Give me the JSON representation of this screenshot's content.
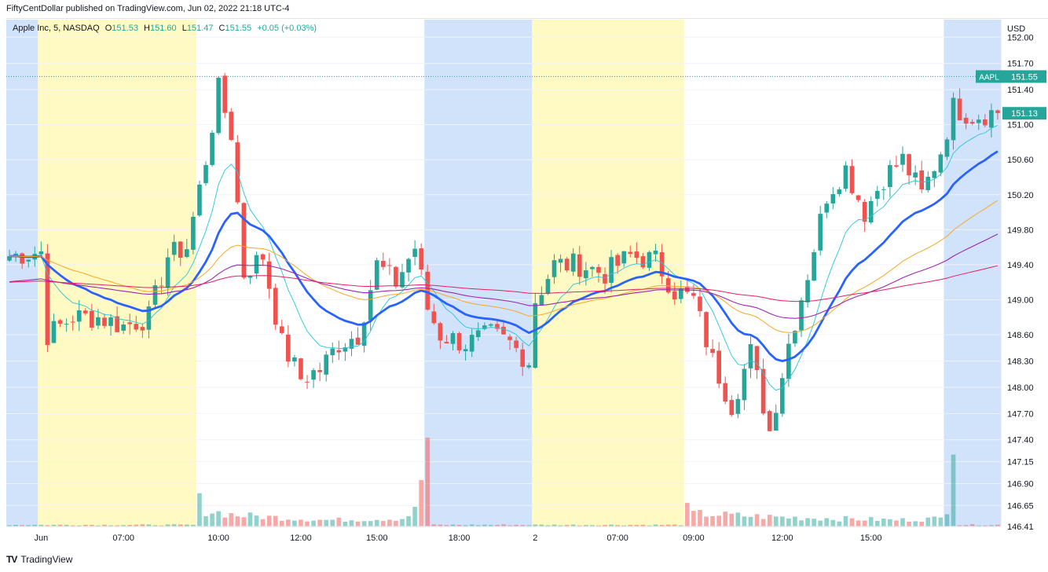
{
  "header": {
    "published_note": "FiftyCentDollar published on TradingView.com, Jun 02, 2022 21:18 UTC-4"
  },
  "legend": {
    "symbol": "Apple Inc, 5, NASDAQ",
    "o_label": "O",
    "o_value": "151.53",
    "h_label": "H",
    "h_value": "151.60",
    "l_label": "L",
    "l_value": "151.47",
    "c_label": "C",
    "c_value": "151.55",
    "change": "+0.05 (+0.03%)"
  },
  "footer": {
    "brand": "TradingView",
    "logo_text": "TV"
  },
  "colors": {
    "up": "#26a69a",
    "down": "#ef5350",
    "up_volume": "#26a69a",
    "down_volume": "#ef5350",
    "premarket_bg": "#fff9c4",
    "afterhours_bg": "#d1e2fb",
    "ema_fast": "#26c6da",
    "ema_main": "#2962ff",
    "ema_orange": "#f9a825",
    "ema_purple": "#9c27b0",
    "ema_pink": "#e91e63",
    "price_label_bg": "#26a69a",
    "price_line": "#26a69a"
  },
  "chart_data": {
    "type": "candlestick",
    "symbol": "AAPL",
    "interval": "5",
    "exchange": "NASDAQ",
    "currency_label": "USD",
    "ylim": [
      146.41,
      152.2
    ],
    "y_ticks": [
      "152.00",
      "151.70",
      "151.40",
      "151.00",
      "150.60",
      "150.20",
      "149.80",
      "149.40",
      "149.00",
      "148.60",
      "148.30",
      "148.00",
      "147.70",
      "147.40",
      "147.15",
      "146.90",
      "146.65",
      "146.41"
    ],
    "x_ticks": [
      "Jun",
      "07:00",
      "10:00",
      "12:00",
      "15:00",
      "18:00",
      "2",
      "07:00",
      "09:00",
      "12:00",
      "15:00"
    ],
    "session_bands": [
      {
        "type": "afterhours",
        "from": 0,
        "to": 5
      },
      {
        "type": "premarket",
        "from": 5,
        "to": 30
      },
      {
        "type": "afterhours",
        "from": 66,
        "to": 83
      },
      {
        "type": "premarket",
        "from": 83,
        "to": 107
      },
      {
        "type": "afterhours",
        "from": 148,
        "to": 157
      }
    ],
    "path_anchors": [
      {
        "i": 0,
        "v": 149.5
      },
      {
        "i": 5,
        "v": 149.55
      },
      {
        "i": 6,
        "v": 148.6
      },
      {
        "i": 10,
        "v": 148.8
      },
      {
        "i": 14,
        "v": 148.8
      },
      {
        "i": 18,
        "v": 148.7
      },
      {
        "i": 22,
        "v": 148.8
      },
      {
        "i": 25,
        "v": 149.5
      },
      {
        "i": 28,
        "v": 149.6
      },
      {
        "i": 31,
        "v": 150.6
      },
      {
        "i": 33,
        "v": 151.4
      },
      {
        "i": 35,
        "v": 150.9
      },
      {
        "i": 37,
        "v": 149.3
      },
      {
        "i": 40,
        "v": 149.5
      },
      {
        "i": 43,
        "v": 148.5
      },
      {
        "i": 46,
        "v": 148.1
      },
      {
        "i": 49,
        "v": 148.2
      },
      {
        "i": 52,
        "v": 148.5
      },
      {
        "i": 55,
        "v": 148.6
      },
      {
        "i": 58,
        "v": 149.4
      },
      {
        "i": 61,
        "v": 149.2
      },
      {
        "i": 64,
        "v": 149.6
      },
      {
        "i": 66,
        "v": 148.9
      },
      {
        "i": 68,
        "v": 148.6
      },
      {
        "i": 72,
        "v": 148.5
      },
      {
        "i": 76,
        "v": 148.6
      },
      {
        "i": 79,
        "v": 148.5
      },
      {
        "i": 82,
        "v": 148.3
      },
      {
        "i": 83,
        "v": 149.0
      },
      {
        "i": 86,
        "v": 149.4
      },
      {
        "i": 90,
        "v": 149.4
      },
      {
        "i": 94,
        "v": 149.3
      },
      {
        "i": 98,
        "v": 149.5
      },
      {
        "i": 102,
        "v": 149.45
      },
      {
        "i": 105,
        "v": 149.1
      },
      {
        "i": 108,
        "v": 149.0
      },
      {
        "i": 111,
        "v": 148.3
      },
      {
        "i": 114,
        "v": 147.8
      },
      {
        "i": 117,
        "v": 148.4
      },
      {
        "i": 120,
        "v": 147.5
      },
      {
        "i": 123,
        "v": 148.5
      },
      {
        "i": 126,
        "v": 149.3
      },
      {
        "i": 129,
        "v": 150.2
      },
      {
        "i": 132,
        "v": 150.5
      },
      {
        "i": 135,
        "v": 150.0
      },
      {
        "i": 138,
        "v": 150.4
      },
      {
        "i": 141,
        "v": 150.6
      },
      {
        "i": 144,
        "v": 150.2
      },
      {
        "i": 147,
        "v": 150.7
      },
      {
        "i": 149,
        "v": 151.2
      },
      {
        "i": 152,
        "v": 151.1
      },
      {
        "i": 156,
        "v": 151.15
      }
    ],
    "volume_anchors": [
      {
        "i": 0,
        "v": 1
      },
      {
        "i": 29,
        "v": 1
      },
      {
        "i": 30,
        "v": 16
      },
      {
        "i": 31,
        "v": 10
      },
      {
        "i": 36,
        "v": 7
      },
      {
        "i": 50,
        "v": 4
      },
      {
        "i": 62,
        "v": 5
      },
      {
        "i": 64,
        "v": 10
      },
      {
        "i": 65,
        "v": 30
      },
      {
        "i": 66,
        "v": 55
      },
      {
        "i": 67,
        "v": 1
      },
      {
        "i": 106,
        "v": 1
      },
      {
        "i": 107,
        "v": 11
      },
      {
        "i": 108,
        "v": 8
      },
      {
        "i": 120,
        "v": 6
      },
      {
        "i": 140,
        "v": 4
      },
      {
        "i": 147,
        "v": 5
      },
      {
        "i": 148,
        "v": 12
      },
      {
        "i": 149,
        "v": 70
      },
      {
        "i": 150,
        "v": 1
      }
    ],
    "last_price": "151.55",
    "last_price_tag": "AAPL",
    "ema_value": "151.13",
    "moving_averages": [
      {
        "key": "ema_fast",
        "period": 9,
        "width": 0.9
      },
      {
        "key": "ema_main",
        "period": 20,
        "width": 2.8
      },
      {
        "key": "ema_orange",
        "period": 45,
        "width": 1
      },
      {
        "key": "ema_purple",
        "period": 80,
        "width": 1.1
      },
      {
        "key": "ema_pink",
        "period": 200,
        "width": 1
      }
    ],
    "bar_count": 157
  }
}
